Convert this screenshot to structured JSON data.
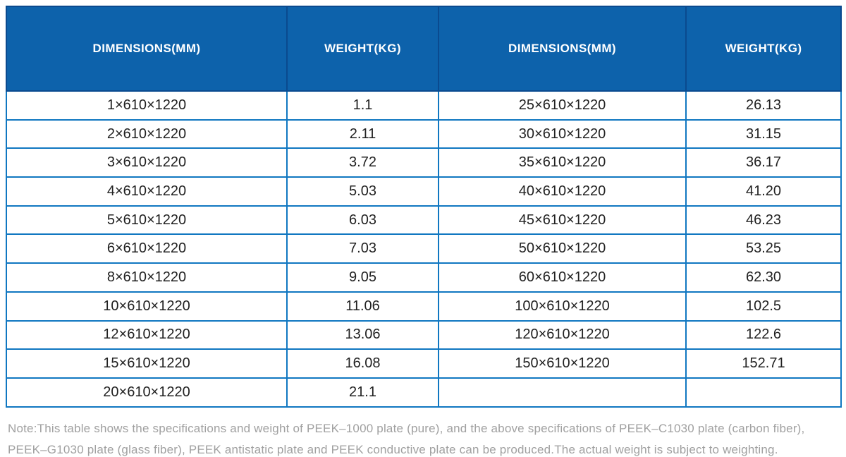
{
  "table": {
    "headers": [
      "DIMENSIONS(MM)",
      "WEIGHT(KG)",
      "DIMENSIONS(MM)",
      "WEIGHT(KG)"
    ],
    "rows": [
      [
        "1×610×1220",
        "1.1",
        "25×610×1220",
        "26.13"
      ],
      [
        "2×610×1220",
        "2.11",
        "30×610×1220",
        "31.15"
      ],
      [
        "3×610×1220",
        "3.72",
        "35×610×1220",
        "36.17"
      ],
      [
        "4×610×1220",
        "5.03",
        "40×610×1220",
        "41.20"
      ],
      [
        "5×610×1220",
        "6.03",
        "45×610×1220",
        "46.23"
      ],
      [
        "6×610×1220",
        "7.03",
        "50×610×1220",
        "53.25"
      ],
      [
        "8×610×1220",
        "9.05",
        "60×610×1220",
        "62.30"
      ],
      [
        "10×610×1220",
        "11.06",
        "100×610×1220",
        "102.5"
      ],
      [
        "12×610×1220",
        "13.06",
        "120×610×1220",
        "122.6"
      ],
      [
        "15×610×1220",
        "16.08",
        "150×610×1220",
        "152.71"
      ],
      [
        "20×610×1220",
        "21.1",
        "",
        ""
      ]
    ]
  },
  "note": {
    "lines": [
      "Note:This table shows the specifications and weight of PEEK–1000 plate (pure), and the above specifications of PEEK–C1030 plate (carbon fiber),",
      "PEEK–G1030 plate (glass fiber), PEEK antistatic plate and PEEK conductive plate can be produced.The actual weight is subject to weighting."
    ]
  },
  "colors": {
    "header_bg": "#0d62ab",
    "header_border": "#0a4a8f",
    "cell_border": "#1077c1",
    "note_text": "#a0a0a0"
  }
}
